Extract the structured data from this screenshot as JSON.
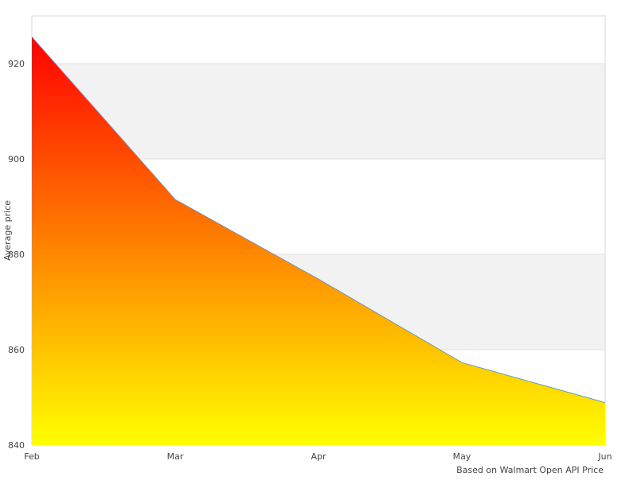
{
  "chart_data": {
    "type": "area",
    "title": "",
    "xlabel": "",
    "ylabel": "Average price",
    "categories": [
      "Feb",
      "Mar",
      "Apr",
      "May",
      "Jun"
    ],
    "series": [
      {
        "values": [
          925.6,
          891.5,
          874.8,
          857.3,
          848.9
        ]
      }
    ],
    "ylim": [
      840,
      930
    ],
    "yticks": [
      "840",
      "860",
      "880",
      "900",
      "920"
    ],
    "grid": "alternating horizontal bands",
    "legend": "none",
    "fill_gradient": {
      "top": "#ff0000",
      "bottom": "#ffff00"
    },
    "line_color": "#5b9bd5",
    "band_color": "#f2f2f2",
    "credit": "Based on Walmart Open API Price"
  }
}
